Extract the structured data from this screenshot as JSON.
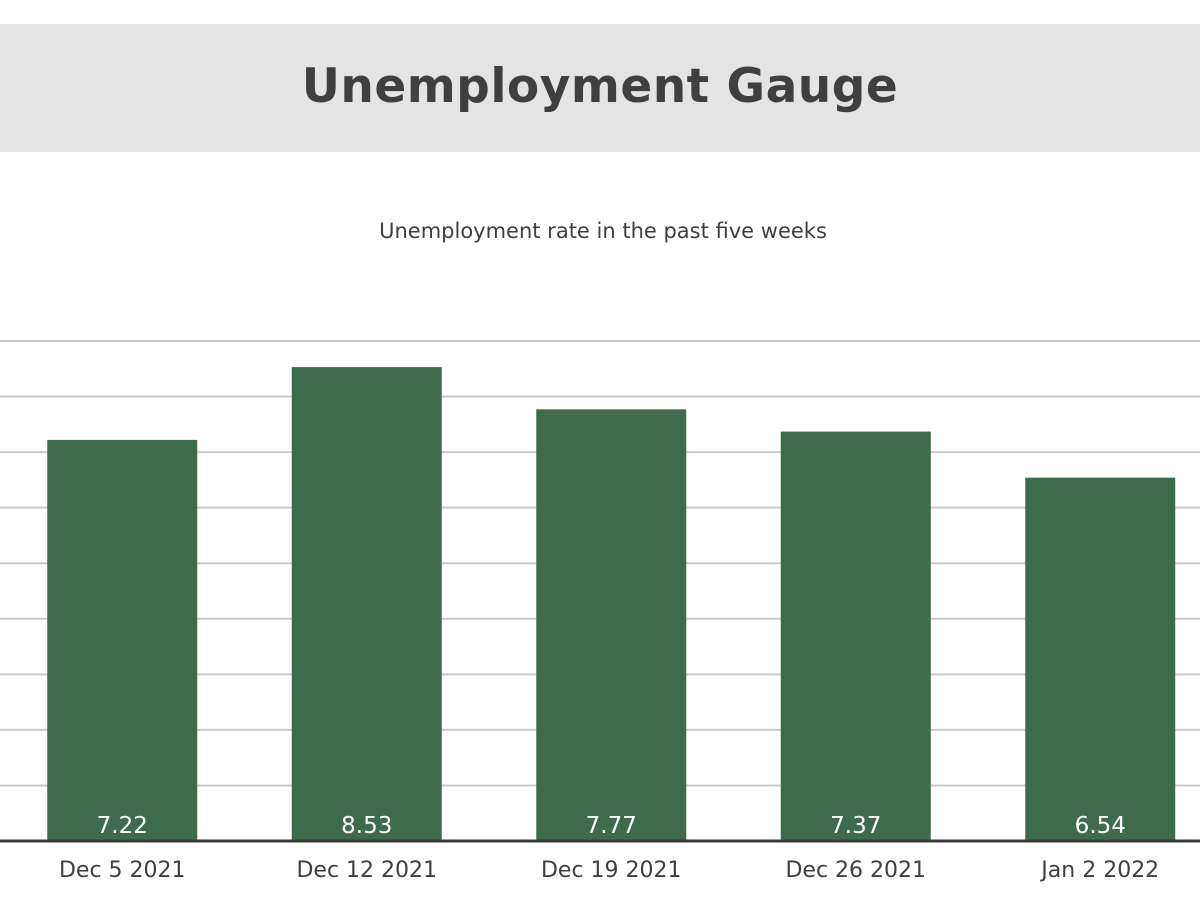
{
  "header": {
    "title": "Unemployment Gauge"
  },
  "chart_data": {
    "type": "bar",
    "title": "Unemployment Gauge",
    "subtitle": "Unemployment rate in the past five weeks",
    "categories": [
      "Dec 5 2021",
      "Dec 12 2021",
      "Dec 19 2021",
      "Dec 26 2021",
      "Jan 2 2022"
    ],
    "values": [
      7.22,
      8.53,
      7.77,
      7.37,
      6.54
    ],
    "value_labels": [
      "7.22",
      "8.53",
      "7.77",
      "7.37",
      "6.54"
    ],
    "ylim": [
      0,
      9
    ],
    "grid": true,
    "legend": "none",
    "xlabel": "",
    "ylabel": "",
    "colors": {
      "bar": "#3e6b4e",
      "header_bg": "#e4e4e4",
      "text": "#3f3f3f",
      "grid": "#c9c9c9"
    }
  }
}
